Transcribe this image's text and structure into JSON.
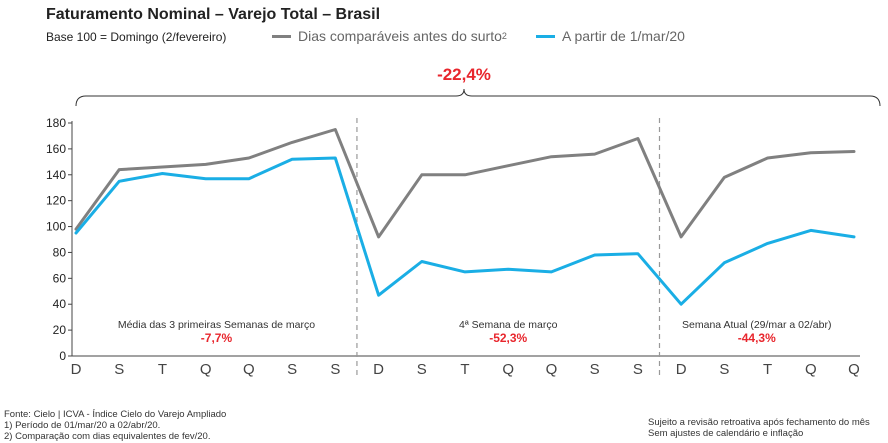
{
  "header": {
    "title": "Faturamento Nominal – Varejo Total – Brasil",
    "base_note": "Base 100 = Domingo (2/fevereiro)"
  },
  "legend": {
    "series_1": "Dias comparáveis antes do surto",
    "series_1_sup": "2",
    "series_2": "A partir de 1/mar/20"
  },
  "footer": {
    "source": "Fonte: Cielo | ICVA - Índice Cielo do Varejo Ampliado",
    "note_1": "1)     Período de 01/mar/20 a 02/abr/20.",
    "note_2": "2)     Comparação com dias equivalentes de fev/20.",
    "disclaimer_1": "Sujeito a revisão retroativa após fechamento do mês",
    "disclaimer_2": "Sem ajustes de calendário e inflação"
  },
  "chart_data": {
    "type": "line",
    "title": "Faturamento Nominal – Varejo Total – Brasil",
    "categories": [
      "D",
      "S",
      "T",
      "Q",
      "Q",
      "S",
      "S",
      "D",
      "S",
      "T",
      "Q",
      "Q",
      "S",
      "S",
      "D",
      "S",
      "T",
      "Q",
      "Q"
    ],
    "series": [
      {
        "name": "Dias comparáveis antes do surto²",
        "color": "#808080",
        "values": [
          98,
          144,
          146,
          148,
          153,
          165,
          175,
          92,
          140,
          140,
          147,
          154,
          156,
          168,
          92,
          138,
          153,
          157,
          158
        ]
      },
      {
        "name": "A partir de 1/mar/20",
        "color": "#1aaee5",
        "values": [
          95,
          135,
          141,
          137,
          137,
          152,
          153,
          47,
          73,
          65,
          67,
          65,
          78,
          79,
          40,
          72,
          87,
          97,
          92
        ]
      }
    ],
    "ylim": [
      0,
      180
    ],
    "yticks": [
      0,
      20,
      40,
      60,
      80,
      100,
      120,
      140,
      160,
      180
    ],
    "xlabel": "",
    "ylabel": "",
    "grid": false,
    "legend_position": "top",
    "separators_after_index": [
      6,
      13
    ],
    "segments": [
      {
        "label": "Média das 3 primeiras Semanas  de março",
        "value": "-7,7%"
      },
      {
        "label": "4ª Semana de março",
        "value": "-52,3%"
      },
      {
        "label": "Semana Atual (29/mar a 02/abr)",
        "value": "-44,3%"
      }
    ],
    "overall_change": "-22,4%",
    "highlight_color": "#e8262d"
  }
}
